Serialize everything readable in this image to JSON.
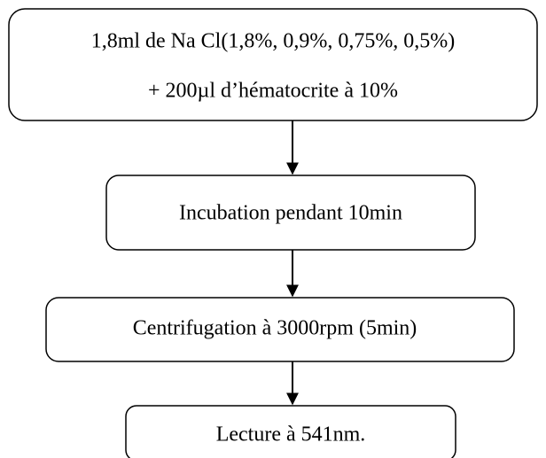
{
  "nodes": [
    {
      "lines": [
        "1,8ml de Na Cl(1,8%, 0,9%, 0,75%, 0,5%)",
        "+ 200µl d’hématocrite à 10%"
      ]
    },
    {
      "lines": [
        "Incubation pendant 10min"
      ]
    },
    {
      "lines": [
        "Centrifugation à 3000rpm (5min)"
      ]
    },
    {
      "lines": [
        "Lecture à 541nm."
      ]
    }
  ]
}
